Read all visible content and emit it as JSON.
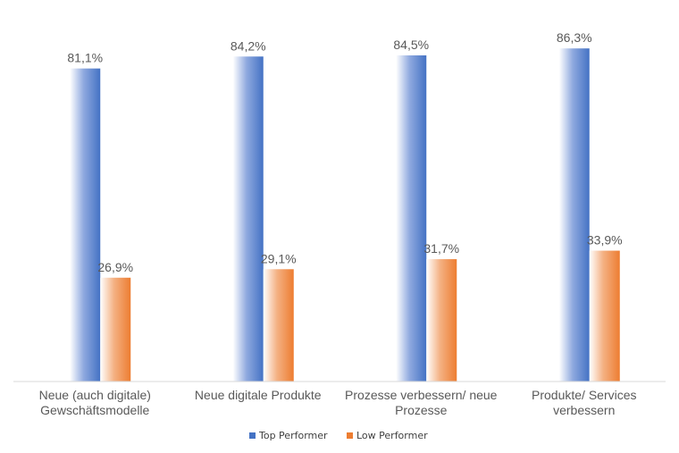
{
  "chart_data": {
    "type": "bar",
    "categories": [
      [
        "Neue (auch digitale)",
        "Gewschäftsmodelle"
      ],
      [
        "Neue digitale Produkte"
      ],
      [
        "Prozesse verbessern/ neue",
        "Prozesse"
      ],
      [
        "Produkte/ Services",
        "verbessern"
      ]
    ],
    "series": [
      {
        "name": "Top Performer",
        "values": [
          81.1,
          84.2,
          84.5,
          86.3
        ],
        "labels": [
          "81,1%",
          "84,2%",
          "84,5%",
          "86,3%"
        ],
        "color": "#4472C4"
      },
      {
        "name": "Low Performer",
        "values": [
          26.9,
          29.1,
          31.7,
          33.9
        ],
        "labels": [
          "26,9%",
          "29,1%",
          "31,7%",
          "33,9%"
        ],
        "color": "#ED7D31"
      }
    ],
    "ylim": [
      0,
      100
    ],
    "grid": false,
    "legend": "bottom"
  }
}
